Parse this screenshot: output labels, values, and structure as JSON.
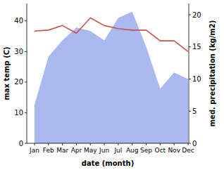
{
  "chart_data": {
    "type": "line",
    "x_label": "date (month)",
    "y_label": "max temp (C)",
    "y2_label": "med. precipitation (kg/m2)",
    "categories": [
      "Jan",
      "Feb",
      "Mar",
      "Apr",
      "May",
      "Jun",
      "Jul",
      "Aug",
      "Sep",
      "Oct",
      "Nov",
      "Dec"
    ],
    "ylim": [
      0,
      45.7
    ],
    "yticks": [
      0,
      10,
      20,
      30,
      40
    ],
    "y2lim": [
      0,
      21.75
    ],
    "y2ticks": [
      0,
      5,
      10,
      15,
      20
    ],
    "grid": false,
    "series": [
      {
        "type": "area",
        "axis": "y2",
        "color": "#aab8f0",
        "values": [
          6,
          13.5,
          16,
          18,
          17.5,
          16,
          19.5,
          20.5,
          15,
          8.5,
          11,
          10
        ]
      },
      {
        "type": "line",
        "color": "#c9504f",
        "values": [
          36.7,
          37,
          38.5,
          36,
          41,
          38.5,
          37.5,
          37,
          37,
          33.5,
          33.5,
          30
        ]
      }
    ]
  }
}
